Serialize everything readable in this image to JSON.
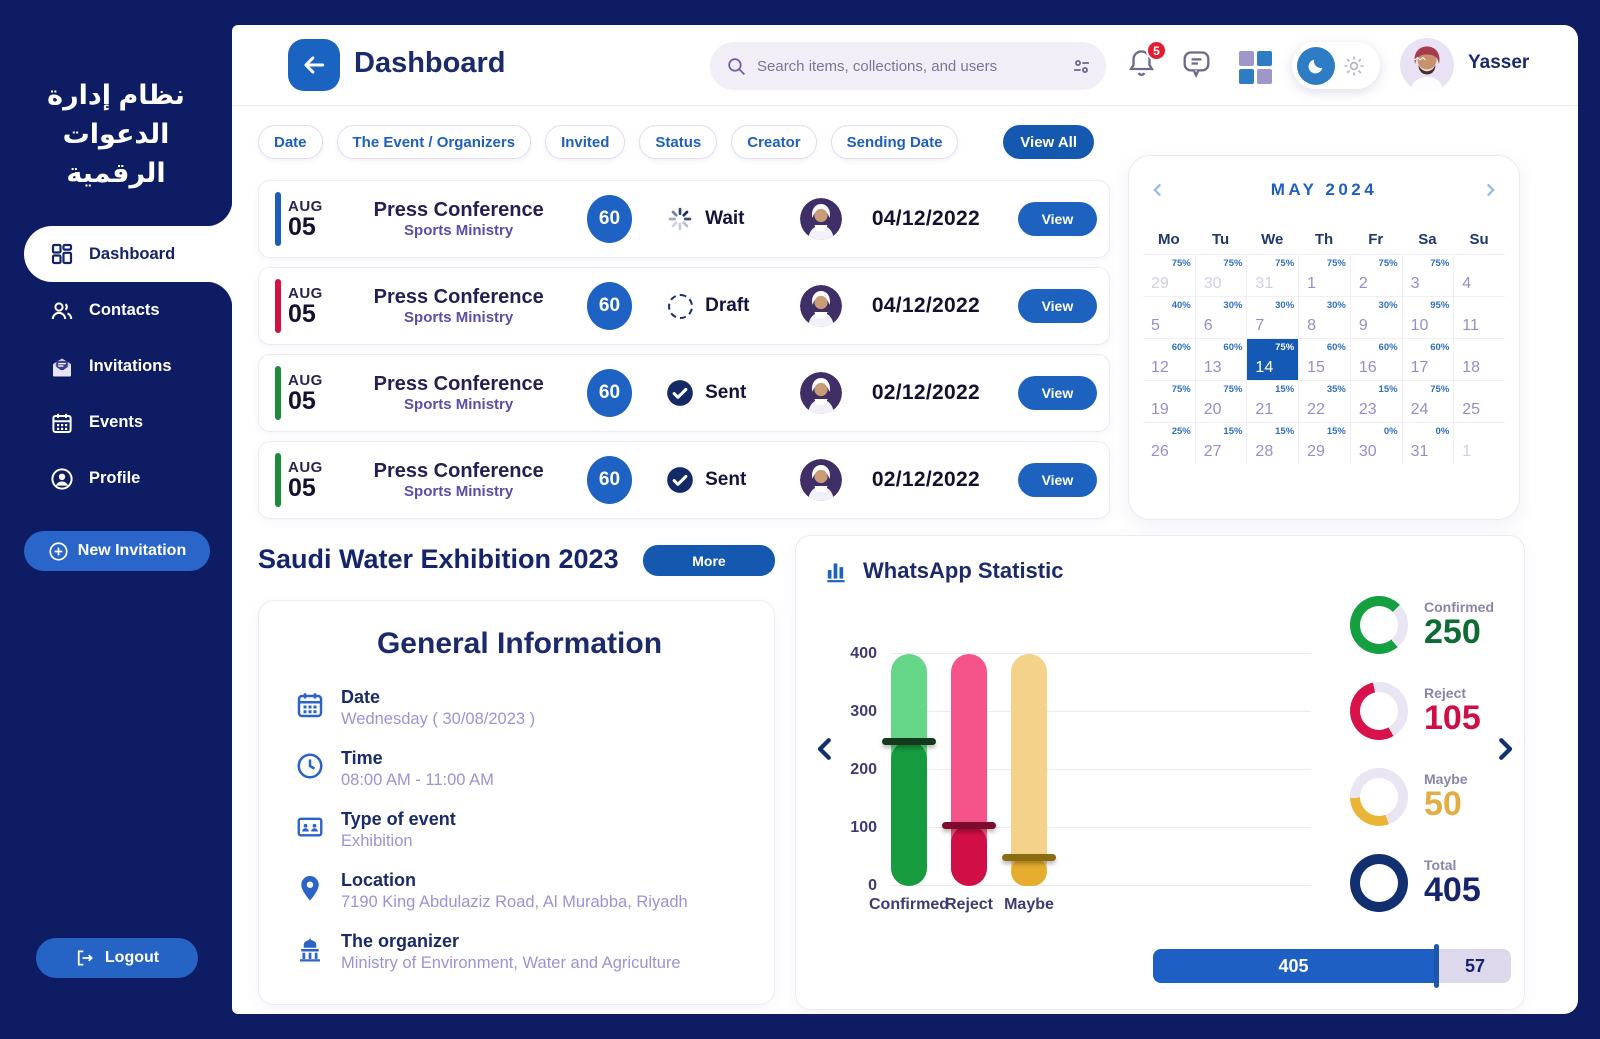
{
  "app": {
    "title_ar": "نظام إدارة الدعوات الرقمية"
  },
  "sidebar": {
    "items": [
      {
        "label": "Dashboard",
        "icon": "dashboard-grid-icon",
        "active": true
      },
      {
        "label": "Contacts",
        "icon": "contacts-icon"
      },
      {
        "label": "Invitations",
        "icon": "invitations-mail-icon"
      },
      {
        "label": "Events",
        "icon": "events-calendar-icon"
      },
      {
        "label": "Profile",
        "icon": "profile-icon"
      }
    ],
    "new_invitation_label": "New Invitation",
    "logout_label": "Logout"
  },
  "header": {
    "title": "Dashboard",
    "search_placeholder": "Search items, collections, and users",
    "notifications_count": "5",
    "user_name": "Yasser",
    "icons": [
      "back-arrow-icon",
      "search-icon",
      "filter-sliders-icon",
      "bell-icon",
      "chat-icon",
      "apps-grid-icon",
      "moon-icon",
      "sun-icon"
    ]
  },
  "filters": {
    "chips": [
      "Date",
      "The Event / Organizers",
      "Invited",
      "Status",
      "Creator",
      "Sending Date"
    ],
    "view_all_label": "View All"
  },
  "events": {
    "rows": [
      {
        "month": "AUG",
        "day": "05",
        "title": "Press Conference",
        "subtitle": "Sports Ministry",
        "invited": "60",
        "status": "Wait",
        "status_icon": "wait-spinner-icon",
        "accent": "#1a5cb8",
        "date": "04/12/2022",
        "action": "View"
      },
      {
        "month": "AUG",
        "day": "05",
        "title": "Press Conference",
        "subtitle": "Sports Ministry",
        "invited": "60",
        "status": "Draft",
        "status_icon": "draft-dashed-circle-icon",
        "accent": "#d21240",
        "date": "04/12/2022",
        "action": "View"
      },
      {
        "month": "AUG",
        "day": "05",
        "title": "Press Conference",
        "subtitle": "Sports Ministry",
        "invited": "60",
        "status": "Sent",
        "status_icon": "sent-check-icon",
        "accent": "#1e8a3c",
        "date": "02/12/2022",
        "action": "View"
      },
      {
        "month": "AUG",
        "day": "05",
        "title": "Press Conference",
        "subtitle": "Sports Ministry",
        "invited": "60",
        "status": "Sent",
        "status_icon": "sent-check-icon",
        "accent": "#1e8a3c",
        "date": "02/12/2022",
        "action": "View"
      }
    ]
  },
  "calendar": {
    "title": "MAY 2024",
    "selected_day": "14",
    "day_headers": [
      "Mo",
      "Tu",
      "We",
      "Th",
      "Fr",
      "Sa",
      "Su"
    ],
    "weeks": [
      [
        {
          "d": "29",
          "p": "75%",
          "m": true
        },
        {
          "d": "30",
          "p": "75%",
          "m": true
        },
        {
          "d": "31",
          "p": "75%",
          "m": true
        },
        {
          "d": "1",
          "p": "75%"
        },
        {
          "d": "2",
          "p": "75%"
        },
        {
          "d": "3",
          "p": "75%"
        },
        {
          "d": "4"
        }
      ],
      [
        {
          "d": "5",
          "p": "40%"
        },
        {
          "d": "6",
          "p": "30%"
        },
        {
          "d": "7",
          "p": "30%"
        },
        {
          "d": "8",
          "p": "30%"
        },
        {
          "d": "9",
          "p": "30%"
        },
        {
          "d": "10",
          "p": "95%"
        },
        {
          "d": "11"
        }
      ],
      [
        {
          "d": "12",
          "p": "60%"
        },
        {
          "d": "13",
          "p": "60%"
        },
        {
          "d": "14",
          "p": "75%",
          "s": true
        },
        {
          "d": "15",
          "p": "60%"
        },
        {
          "d": "16",
          "p": "60%"
        },
        {
          "d": "17",
          "p": "60%"
        },
        {
          "d": "18"
        }
      ],
      [
        {
          "d": "19",
          "p": "75%"
        },
        {
          "d": "20",
          "p": "75%"
        },
        {
          "d": "21",
          "p": "15%"
        },
        {
          "d": "22",
          "p": "35%"
        },
        {
          "d": "23",
          "p": "15%"
        },
        {
          "d": "24",
          "p": "75%"
        },
        {
          "d": "25"
        }
      ],
      [
        {
          "d": "26",
          "p": "25%"
        },
        {
          "d": "27",
          "p": "15%"
        },
        {
          "d": "28",
          "p": "15%"
        },
        {
          "d": "29",
          "p": "15%"
        },
        {
          "d": "30",
          "p": "0%"
        },
        {
          "d": "31",
          "p": "0%"
        },
        {
          "d": "1",
          "m": true
        }
      ]
    ]
  },
  "exhibition": {
    "title": "Saudi Water Exhibition 2023",
    "more_label": "More"
  },
  "general_info": {
    "title": "General Information",
    "items": [
      {
        "icon": "calendar-icon",
        "label": "Date",
        "value": "Wednesday  ( 30/08/2023 )"
      },
      {
        "icon": "clock-icon",
        "label": "Time",
        "value": "08:00 AM - 11:00 AM"
      },
      {
        "icon": "event-type-icon",
        "label": "Type of event",
        "value": "Exhibition"
      },
      {
        "icon": "location-pin-icon",
        "label": "Location",
        "value": "7190 King Abdulaziz Road, Al Murabba, Riyadh"
      },
      {
        "icon": "organizer-building-icon",
        "label": "The organizer",
        "value": "Ministry of Environment, Water and Agriculture"
      }
    ]
  },
  "chart_data": {
    "type": "bar",
    "title": "WhatsApp Statistic",
    "categories": [
      "Confirmed",
      "Reject",
      "Maybe"
    ],
    "values": [
      250,
      105,
      50
    ],
    "xlabel": "",
    "ylabel": "",
    "ylim": [
      0,
      400
    ],
    "yticks": [
      0,
      100,
      200,
      300,
      400
    ],
    "grid": true,
    "legend_position": "none",
    "bar_colors_light": [
      "#66d688",
      "#f5548b",
      "#f3d289"
    ],
    "bar_colors_dark": [
      "#169b3e",
      "#cf0f45",
      "#e6ad2f"
    ],
    "marker_colors": [
      "#143a1e",
      "#7e0b2d",
      "#8a6c12"
    ],
    "stats": [
      {
        "label": "Confirmed",
        "value": "250",
        "color": "#14a041",
        "track": "#e9e5f2",
        "start": 140,
        "frac": 0.74,
        "number_color": "#0d6b33"
      },
      {
        "label": "Reject",
        "value": "105",
        "color": "#d8124a",
        "track": "#e9e5f2",
        "start": 150,
        "frac": 0.55,
        "number_color": "#ce0f45"
      },
      {
        "label": "Maybe",
        "value": "50",
        "color": "#eab437",
        "track": "#e9e5f2",
        "start": 160,
        "frac": 0.3,
        "number_color": "#e3ac44"
      },
      {
        "label": "Total",
        "value": "405",
        "color": "#12306f",
        "track": "#12306f",
        "start": 0,
        "frac": 1,
        "number_color": "#16256b"
      }
    ],
    "progress": {
      "left_value": "405",
      "right_value": "57"
    }
  }
}
